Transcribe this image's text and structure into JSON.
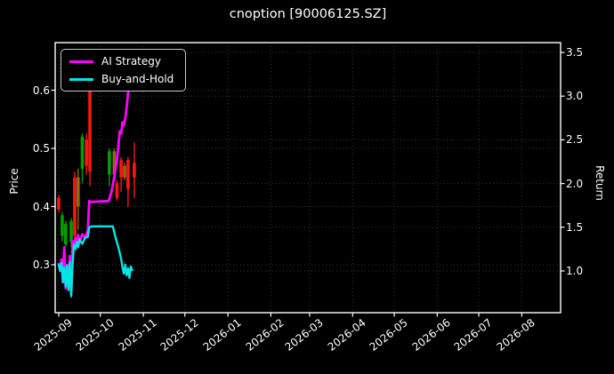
{
  "title": "cnoption [90006125.SZ]",
  "legend": {
    "items": [
      {
        "label": "AI Strategy",
        "color": "#ff00ff"
      },
      {
        "label": "Buy-and-Hold",
        "color": "#00e6e6"
      }
    ]
  },
  "chart_data": {
    "type": "line+candlestick",
    "title": "cnoption [90006125.SZ]",
    "background": "#000000",
    "text_color": "#ffffff",
    "grid": {
      "style": "dotted",
      "color": "#3a3a3a"
    },
    "x_axis": {
      "unit": "days_since_2025-09-01",
      "ticks": [
        {
          "label": "2025-09",
          "day": 0
        },
        {
          "label": "2025-10",
          "day": 30
        },
        {
          "label": "2025-11",
          "day": 61
        },
        {
          "label": "2025-12",
          "day": 91
        },
        {
          "label": "2026-01",
          "day": 122
        },
        {
          "label": "2026-02",
          "day": 153
        },
        {
          "label": "2026-03",
          "day": 181
        },
        {
          "label": "2026-04",
          "day": 212
        },
        {
          "label": "2026-05",
          "day": 242
        },
        {
          "label": "2026-06",
          "day": 273
        },
        {
          "label": "2026-07",
          "day": 303
        },
        {
          "label": "2026-08",
          "day": 334
        }
      ]
    },
    "price_axis": {
      "label": "Price",
      "ticks": [
        0.3,
        0.4,
        0.5,
        0.6
      ],
      "range": [
        0.215,
        0.69
      ]
    },
    "return_axis": {
      "label": "Return",
      "ticks": [
        1.0,
        1.5,
        2.0,
        2.5,
        3.0,
        3.5
      ],
      "range": [
        0.52,
        3.64
      ]
    },
    "series": [
      {
        "name": "AI Strategy",
        "axis": "return",
        "color": "#ff00ff",
        "width": 2.8,
        "points": [
          [
            0,
            1.08
          ],
          [
            1,
            1.0
          ],
          [
            2,
            1.13
          ],
          [
            3,
            0.87
          ],
          [
            4,
            1.27
          ],
          [
            5,
            0.8
          ],
          [
            6,
            1.07
          ],
          [
            7,
            0.84
          ],
          [
            8,
            1.17
          ],
          [
            9,
            0.73
          ],
          [
            10,
            1.34
          ],
          [
            11,
            1.27
          ],
          [
            12,
            1.38
          ],
          [
            13,
            1.29
          ],
          [
            14,
            1.41
          ],
          [
            15,
            1.33
          ],
          [
            17,
            1.42
          ],
          [
            19,
            1.38
          ],
          [
            21,
            1.47
          ],
          [
            22,
            1.8
          ],
          [
            23,
            1.79
          ],
          [
            36,
            1.8
          ],
          [
            38,
            1.9
          ],
          [
            40,
            2.07
          ],
          [
            42,
            2.27
          ],
          [
            43,
            2.43
          ],
          [
            44,
            2.6
          ],
          [
            45,
            2.57
          ],
          [
            46,
            2.7
          ],
          [
            47,
            2.67
          ],
          [
            48,
            2.74
          ],
          [
            49,
            2.87
          ],
          [
            50,
            3.03
          ],
          [
            51,
            3.23
          ],
          [
            52,
            3.4
          ]
        ]
      },
      {
        "name": "Buy-and-Hold",
        "axis": "return",
        "color": "#00e6e6",
        "width": 2.4,
        "points": [
          [
            0,
            1.07
          ],
          [
            1,
            1.0
          ],
          [
            2,
            1.09
          ],
          [
            3,
            0.87
          ],
          [
            4,
            1.04
          ],
          [
            5,
            0.82
          ],
          [
            6,
            1.06
          ],
          [
            7,
            0.78
          ],
          [
            8,
            1.1
          ],
          [
            9,
            0.71
          ],
          [
            10,
            1.07
          ],
          [
            11,
            1.3
          ],
          [
            12,
            1.25
          ],
          [
            13,
            1.33
          ],
          [
            14,
            1.27
          ],
          [
            15,
            1.36
          ],
          [
            17,
            1.31
          ],
          [
            19,
            1.38
          ],
          [
            21,
            1.39
          ],
          [
            22,
            1.5
          ],
          [
            24,
            1.51
          ],
          [
            39,
            1.51
          ],
          [
            41,
            1.38
          ],
          [
            43,
            1.27
          ],
          [
            45,
            1.14
          ],
          [
            46,
            1.04
          ],
          [
            47,
            0.97
          ],
          [
            48,
            1.07
          ],
          [
            49,
            0.95
          ],
          [
            50,
            1.03
          ],
          [
            51,
            0.92
          ],
          [
            52,
            1.05
          ],
          [
            53,
            1.01
          ]
        ]
      }
    ],
    "candles": {
      "colors": {
        "up": "#00a000",
        "down": "#ff1414",
        "mixed": "#8a6d14"
      },
      "items": [
        {
          "day": 0,
          "dir": "down",
          "open": 0.415,
          "high": 0.42,
          "low": 0.39,
          "close": 0.395
        },
        {
          "day": 2.5,
          "dir": "up",
          "open": 0.35,
          "high": 0.39,
          "low": 0.34,
          "close": 0.385
        },
        {
          "day": 5,
          "dir": "up",
          "open": 0.335,
          "high": 0.375,
          "low": 0.33,
          "close": 0.37
        },
        {
          "day": 9,
          "dir": "up",
          "open": 0.34,
          "high": 0.38,
          "low": 0.33,
          "close": 0.375
        },
        {
          "day": 11.5,
          "dir": "down",
          "open": 0.45,
          "high": 0.46,
          "low": 0.33,
          "close": 0.35
        },
        {
          "day": 14,
          "dir": "mixed",
          "open": 0.45,
          "high": 0.465,
          "low": 0.36,
          "close": 0.4
        },
        {
          "day": 17,
          "dir": "up",
          "open": 0.465,
          "high": 0.525,
          "low": 0.44,
          "close": 0.52
        },
        {
          "day": 20,
          "dir": "down",
          "open": 0.515,
          "high": 0.525,
          "low": 0.455,
          "close": 0.47
        },
        {
          "day": 22.5,
          "dir": "down",
          "open": 0.6,
          "high": 0.615,
          "low": 0.435,
          "close": 0.46
        },
        {
          "day": 36.5,
          "dir": "up",
          "open": 0.455,
          "high": 0.5,
          "low": 0.435,
          "close": 0.495
        },
        {
          "day": 40,
          "dir": "mixed",
          "open": 0.495,
          "high": 0.5,
          "low": 0.45,
          "close": 0.455
        },
        {
          "day": 42,
          "dir": "down",
          "open": 0.44,
          "high": 0.445,
          "low": 0.41,
          "close": 0.415
        },
        {
          "day": 45,
          "dir": "down",
          "open": 0.48,
          "high": 0.485,
          "low": 0.425,
          "close": 0.45
        },
        {
          "day": 47.5,
          "dir": "mixed",
          "open": 0.47,
          "high": 0.475,
          "low": 0.445,
          "close": 0.45
        },
        {
          "day": 50,
          "dir": "down",
          "open": 0.48,
          "high": 0.485,
          "low": 0.4,
          "close": 0.43
        },
        {
          "day": 54.5,
          "dir": "down",
          "open": 0.475,
          "high": 0.51,
          "low": 0.415,
          "close": 0.45
        }
      ]
    }
  }
}
